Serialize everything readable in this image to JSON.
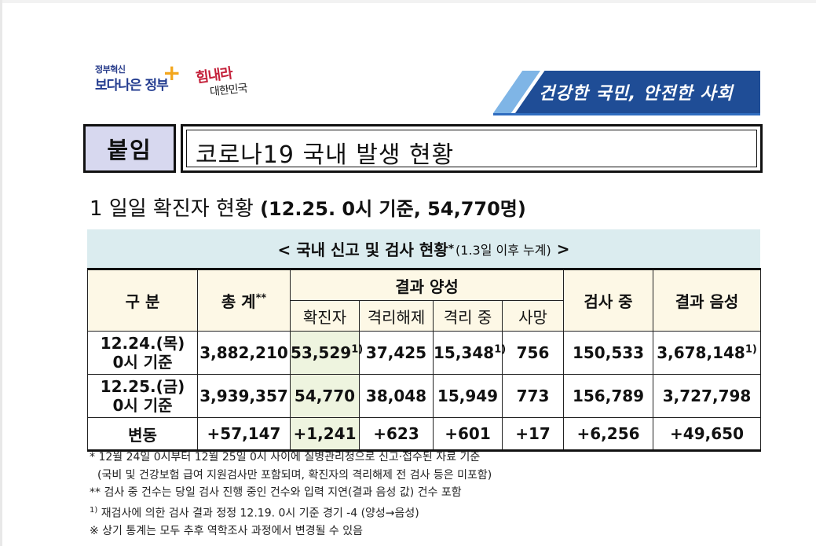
{
  "header": {
    "logo1_small": "정부혁신",
    "logo1_big": "보다나은 정부",
    "logo2_top": "힘내라",
    "logo2_bottom": "대한민국",
    "banner_text": "건강한 국민, 안전한 사회"
  },
  "title": {
    "tag": "붙임",
    "text": "코로나19 국내 발생 현황"
  },
  "section": {
    "number": "1",
    "heading": "일일 확진자 현황",
    "detail": "(12.25. 0시 기준, 54,770명)"
  },
  "table": {
    "caption_main": "< 국내 신고 및 검사 현황",
    "caption_star": "*",
    "caption_note": "(1.3일 이후 누계)",
    "caption_end": ">",
    "headers": {
      "category": "구 분",
      "total": "총 계",
      "total_mark": "**",
      "positive_group": "결과 양성",
      "confirmed": "확진자",
      "released": "격리해제",
      "isolated": "격리 중",
      "deaths": "사망",
      "testing": "검사 중",
      "negative": "결과 음성"
    },
    "rows": [
      {
        "label_line1": "12.24.(목)",
        "label_line2": "0시 기준",
        "total": "3,882,210",
        "confirmed": "53,529",
        "confirmed_mark": "1)",
        "released": "37,425",
        "isolated": "15,348",
        "isolated_mark": "1)",
        "deaths": "756",
        "testing": "150,533",
        "negative": "3,678,148",
        "negative_mark": "1)"
      },
      {
        "label_line1": "12.25.(금)",
        "label_line2": "0시 기준",
        "total": "3,939,357",
        "confirmed": "54,770",
        "released": "38,048",
        "isolated": "15,949",
        "deaths": "773",
        "testing": "156,789",
        "negative": "3,727,798"
      }
    ],
    "change": {
      "label": "변동",
      "total": "+57,147",
      "confirmed": "+1,241",
      "released": "+623",
      "isolated": "+601",
      "deaths": "+17",
      "testing": "+6,256",
      "negative": "+49,650"
    }
  },
  "notes": {
    "n1": "* 12월 24일 0시부터 12월 25일 0시 사이에 질병관리청으로 신고·접수된 자료 기준",
    "n2": "(국비 및 건강보험 급여 지원검사만 포함되며, 확진자의 격리해제 전 검사 등은 미포함)",
    "n3": "** 검사 중 건수는 당일 검사 진행 중인 건수와 입력 지연(결과 음성 값) 건수 포함",
    "n4_mark": "1)",
    "n4": "재검사에 의한 검사 결과 정정 12.19. 0시 기준 경기 -4 (양성→음성)",
    "n5": "※ 상기 통계는 모두 추후 역학조사 과정에서 변경될 수 있음"
  },
  "colors": {
    "banner": "#1f4d96",
    "tag_bg": "#d7d8ef",
    "caption_bg": "#dbecef",
    "header_bg": "#fdf8e6",
    "confirmed_bg": "#eef4df"
  }
}
